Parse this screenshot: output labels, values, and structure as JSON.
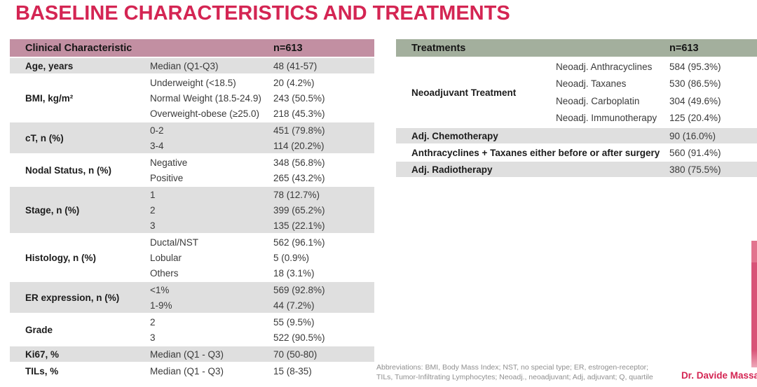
{
  "title": "BASELINE CHARACTERISTICS AND TREATMENTS",
  "colors": {
    "accent": "#d42553",
    "left_header_bg": "#c28fa2",
    "right_header_bg": "#a3af9d",
    "row_gray": "#dfdfdf",
    "footer_text": "#8f8f8f",
    "edge_bar_pink": "#d85377"
  },
  "left_table": {
    "header": {
      "label": "Clinical Characteristic",
      "n": "n=613"
    },
    "groups": [
      {
        "label": "Age, years",
        "shade": "gray",
        "rows": [
          {
            "sub": "Median (Q1-Q3)",
            "value": "48 (41-57)"
          }
        ]
      },
      {
        "label": "BMI, kg/m²",
        "shade": "white",
        "rows": [
          {
            "sub": "Underweight (<18.5)",
            "value": "20 (4.2%)"
          },
          {
            "sub": "Normal Weight (18.5-24.9)",
            "value": "243 (50.5%)"
          },
          {
            "sub": "Overweight-obese (≥25.0)",
            "value": "218 (45.3%)"
          }
        ]
      },
      {
        "label": "cT, n (%)",
        "shade": "gray",
        "rows": [
          {
            "sub": "0-2",
            "value": "451 (79.8%)"
          },
          {
            "sub": "3-4",
            "value": "114 (20.2%)"
          }
        ]
      },
      {
        "label": "Nodal Status, n (%)",
        "shade": "white",
        "rows": [
          {
            "sub": "Negative",
            "value": "348 (56.8%)"
          },
          {
            "sub": "Positive",
            "value": "265 (43.2%)"
          }
        ]
      },
      {
        "label": "Stage, n (%)",
        "shade": "gray",
        "rows": [
          {
            "sub": "1",
            "value": "78 (12.7%)"
          },
          {
            "sub": "2",
            "value": "399 (65.2%)"
          },
          {
            "sub": "3",
            "value": "135 (22.1%)"
          }
        ]
      },
      {
        "label": "Histology, n (%)",
        "shade": "white",
        "rows": [
          {
            "sub": "Ductal/NST",
            "value": "562 (96.1%)"
          },
          {
            "sub": "Lobular",
            "value": "5 (0.9%)"
          },
          {
            "sub": "Others",
            "value": "18 (3.1%)"
          }
        ]
      },
      {
        "label": "ER expression, n (%)",
        "shade": "gray",
        "rows": [
          {
            "sub": "<1%",
            "value": "569 (92.8%)"
          },
          {
            "sub": "1-9%",
            "value": "44 (7.2%)"
          }
        ]
      },
      {
        "label": "Grade",
        "shade": "white",
        "rows": [
          {
            "sub": "2",
            "value": "55 (9.5%)"
          },
          {
            "sub": "3",
            "value": "522 (90.5%)"
          }
        ]
      },
      {
        "label": "Ki67, %",
        "shade": "gray",
        "rows": [
          {
            "sub": "Median (Q1 - Q3)",
            "value": "70 (50-80)"
          }
        ]
      },
      {
        "label": "TILs, %",
        "shade": "white",
        "rows": [
          {
            "sub": "Median (Q1 - Q3)",
            "value": "15 (8-35)"
          }
        ]
      }
    ]
  },
  "right_table": {
    "header": {
      "label": "Treatments",
      "n": "n=613"
    },
    "group": {
      "label": "Neoadjuvant Treatment",
      "shade": "white",
      "rows": [
        {
          "sub": "Neoadj. Anthracyclines",
          "value": "584 (95.3%)"
        },
        {
          "sub": "Neoadj. Taxanes",
          "value": "530 (86.5%)"
        },
        {
          "sub": "Neoadj. Carboplatin",
          "value": "304 (49.6%)"
        },
        {
          "sub": "Neoadj. Immunotherapy",
          "value": "125 (20.4%)"
        }
      ]
    },
    "rows": [
      {
        "label": "Adj. Chemotherapy",
        "value": "90 (16.0%)",
        "shade": "gray"
      },
      {
        "label": "Anthracyclines + Taxanes either before or after surgery",
        "value": "560 (91.4%)",
        "shade": "white"
      },
      {
        "label": "Adj. Radiotherapy",
        "value": "380 (75.5%)",
        "shade": "gray"
      }
    ]
  },
  "footer": {
    "line1": "Abbreviations: BMI, Body Mass Index; NST, no special type; ER, estrogen-receptor;",
    "line2": "TILs, Tumor-Infiltrating Lymphocytes; Neoadj., neoadjuvant; Adj, adjuvant; Q, quartile"
  },
  "attribution": "Dr. Davide Massa"
}
